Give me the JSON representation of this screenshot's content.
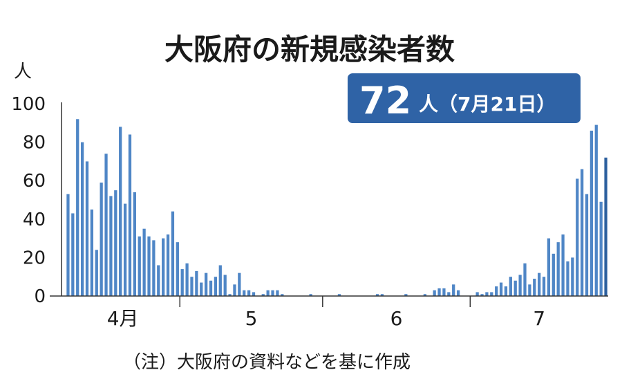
{
  "chart_data": {
    "type": "bar",
    "title": "大阪府の新規感染者数",
    "unit_label": "人",
    "ylim": [
      0,
      100
    ],
    "yticks": [
      0,
      20,
      40,
      60,
      80,
      100
    ],
    "month_labels": [
      "4月",
      "5",
      "6",
      "7"
    ],
    "callout": {
      "value": "72",
      "unit": "人",
      "date": "（7月21日）"
    },
    "note": "（注）大阪府の資料などを基に作成",
    "colors": {
      "bar": "#4f86c6",
      "latest_bar": "#2c5f9e",
      "callout_bg": "#2f63a6",
      "axis": "#333333"
    },
    "values": [
      53,
      43,
      92,
      80,
      70,
      45,
      24,
      59,
      74,
      52,
      55,
      88,
      48,
      84,
      54,
      31,
      35,
      31,
      29,
      16,
      30,
      32,
      44,
      28,
      14,
      17,
      10,
      13,
      7,
      12,
      8,
      10,
      16,
      11,
      1,
      6,
      12,
      3,
      3,
      2,
      0,
      1,
      3,
      3,
      3,
      1,
      0,
      0,
      0,
      0,
      0,
      1,
      0,
      0,
      0,
      0,
      0,
      1,
      0,
      0,
      0,
      0,
      0,
      0,
      0,
      1,
      1,
      0,
      0,
      0,
      0,
      1,
      0,
      0,
      0,
      1,
      0,
      3,
      4,
      4,
      2,
      6,
      3,
      0,
      0,
      0,
      2,
      1,
      2,
      2,
      5,
      7,
      5,
      10,
      8,
      11,
      17,
      6,
      9,
      12,
      10,
      30,
      22,
      28,
      32,
      18,
      20,
      61,
      66,
      53,
      86,
      89,
      49,
      72
    ]
  }
}
